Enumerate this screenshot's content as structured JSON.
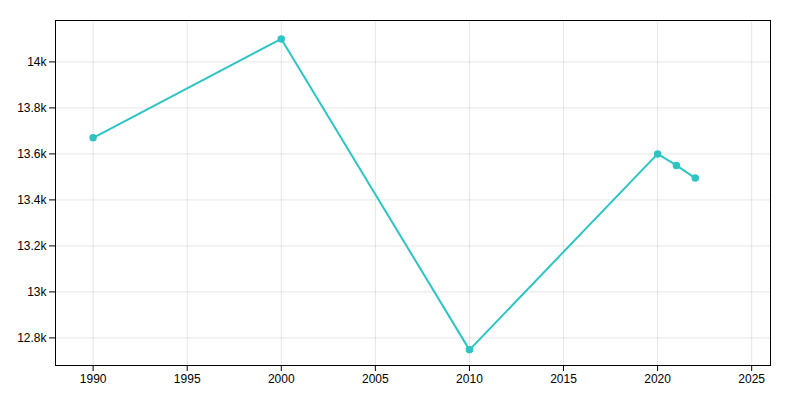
{
  "chart_data": {
    "type": "line",
    "x": [
      1990,
      2000,
      2010,
      2020,
      2021,
      2022
    ],
    "values": [
      13670,
      14100,
      12748,
      13600,
      13550,
      13495
    ],
    "color": "#2EC4C4",
    "marker": "circle",
    "line_style": "solid",
    "xlim": [
      1988,
      2026
    ],
    "ylim": [
      12680,
      14180
    ],
    "xticks": [
      1990,
      1995,
      2000,
      2005,
      2010,
      2015,
      2020,
      2025
    ],
    "yticks": [
      {
        "value": 12800,
        "label": "12.8k"
      },
      {
        "value": 13000,
        "label": "13k"
      },
      {
        "value": 13200,
        "label": "13.2k"
      },
      {
        "value": 13400,
        "label": "13.4k"
      },
      {
        "value": 13600,
        "label": "13.6k"
      },
      {
        "value": 13800,
        "label": "13.8k"
      },
      {
        "value": 14000,
        "label": "14k"
      }
    ],
    "grid": true
  }
}
